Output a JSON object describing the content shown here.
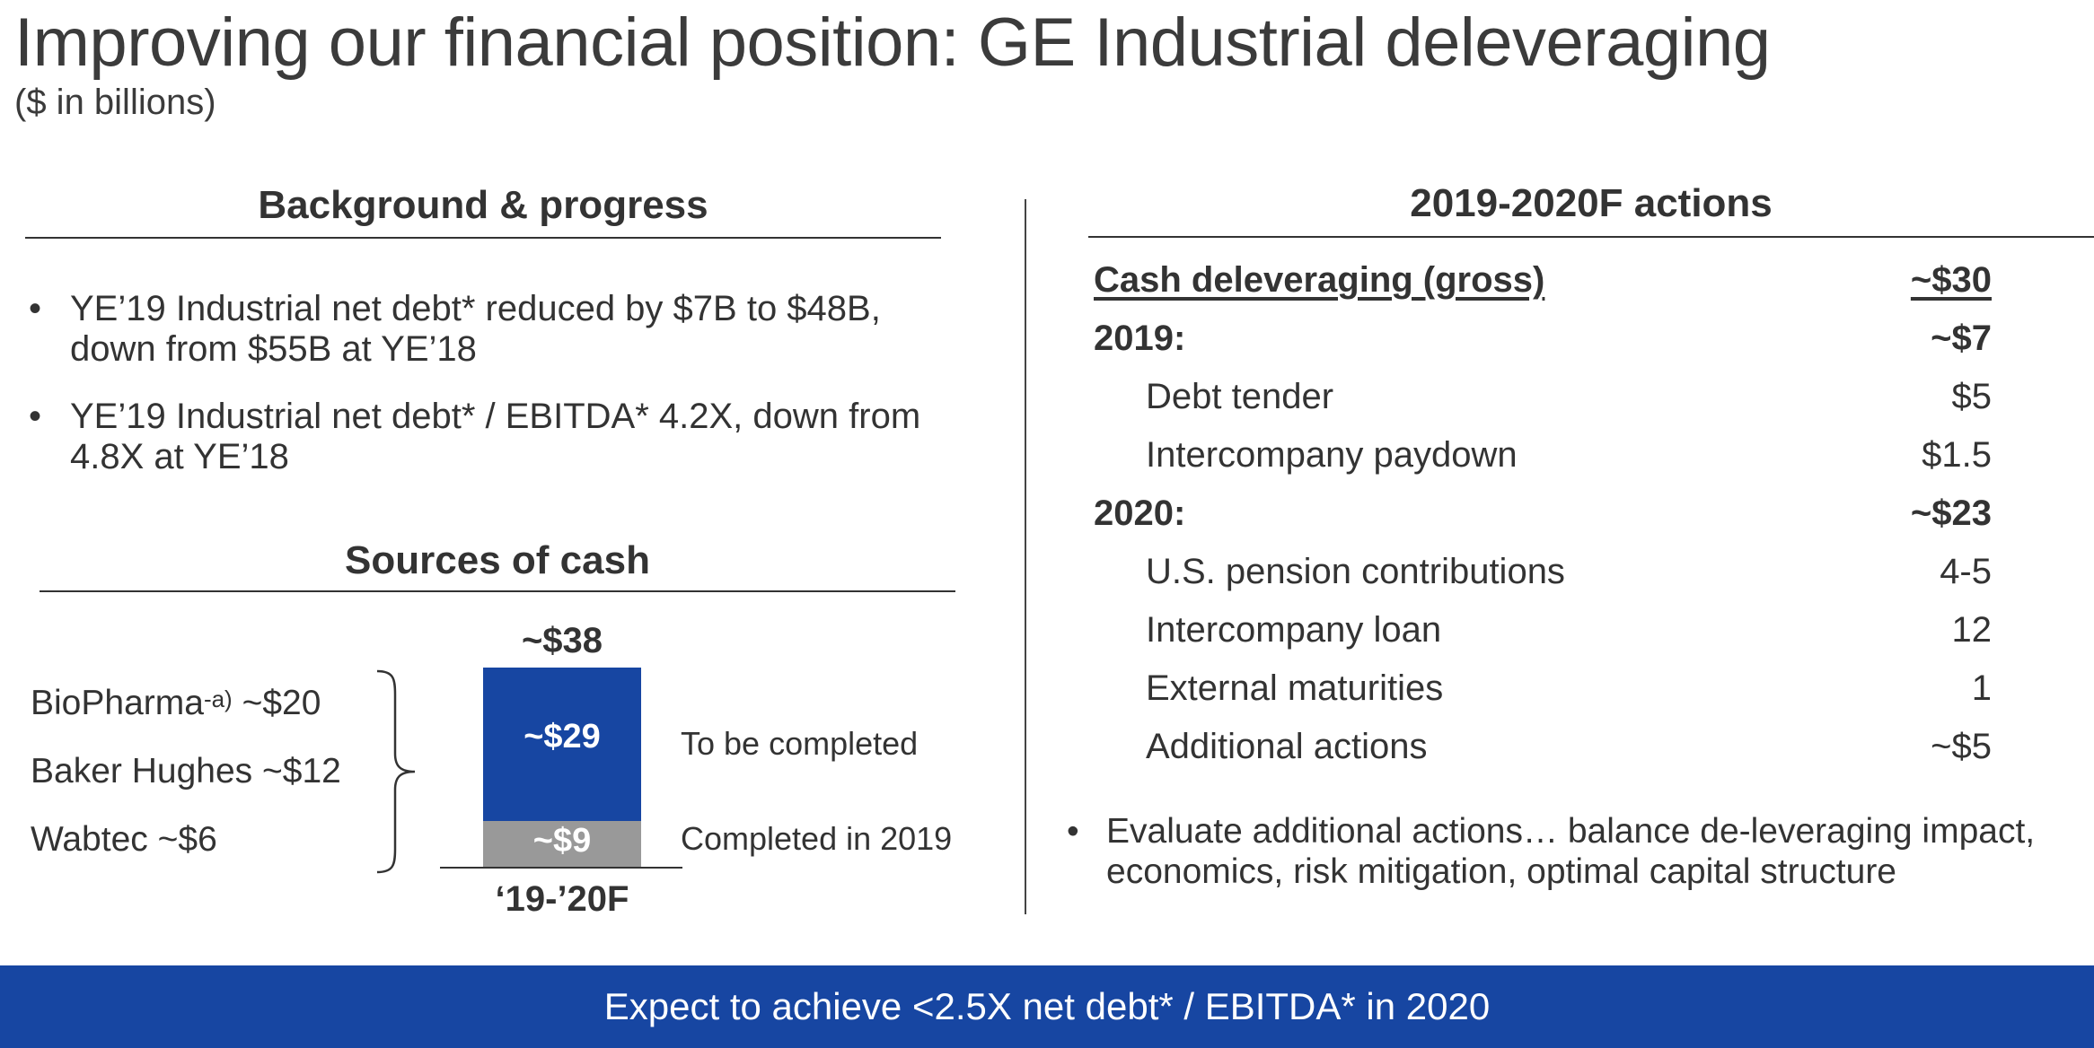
{
  "header": {
    "title": "Improving our financial position: GE Industrial deleveraging",
    "subtitle": "($ in billions)"
  },
  "background": {
    "heading": "Background & progress",
    "bullets": [
      "YE’19 Industrial net debt* reduced by $7B to $48B, down from $55B at YE’18",
      "YE’19 Industrial net debt* / EBITDA* 4.2X, down from 4.8X at YE’18"
    ]
  },
  "sources": {
    "heading": "Sources of cash",
    "items": [
      {
        "name": "BioPharma",
        "sup": "-a)",
        "value": "~$20"
      },
      {
        "name": "Baker Hughes",
        "value": "~$12"
      },
      {
        "name": "Wabtec",
        "value": "~$6"
      }
    ],
    "bar": {
      "total_label": "~$38",
      "category": "‘19-’20F",
      "segments": [
        {
          "label": "~$9",
          "value": 9,
          "note": "Completed in 2019",
          "color": "#999999"
        },
        {
          "label": "~$29",
          "value": 29,
          "note": "To be completed",
          "color": "#1746a2"
        }
      ]
    }
  },
  "actions": {
    "heading": "2019-2020F actions",
    "rows": [
      {
        "label": "Cash deleveraging (gross)",
        "value": "~$30",
        "bold": true,
        "underline": true,
        "indent": false
      },
      {
        "label": "2019:",
        "value": "~$7",
        "bold": true,
        "underline": false,
        "indent": false
      },
      {
        "label": "Debt tender",
        "value": "$5",
        "bold": false,
        "underline": false,
        "indent": true
      },
      {
        "label": "Intercompany paydown",
        "value": "$1.5",
        "bold": false,
        "underline": false,
        "indent": true
      },
      {
        "label": "2020:",
        "value": "~$23",
        "bold": true,
        "underline": false,
        "indent": false
      },
      {
        "label": "U.S. pension contributions",
        "value": "4-5",
        "bold": false,
        "underline": false,
        "indent": true
      },
      {
        "label": "Intercompany loan",
        "value": "12",
        "bold": false,
        "underline": false,
        "indent": true
      },
      {
        "label": "External maturities",
        "value": "1",
        "bold": false,
        "underline": false,
        "indent": true
      },
      {
        "label": "Additional actions",
        "value": "~$5",
        "bold": false,
        "underline": false,
        "indent": true
      }
    ],
    "note": "Evaluate additional actions… balance de-leveraging impact, economics, risk mitigation, optimal capital structure"
  },
  "banner": {
    "text": "Expect to achieve <2.5X net debt* / EBITDA* in 2020",
    "color": "#1746a2"
  }
}
